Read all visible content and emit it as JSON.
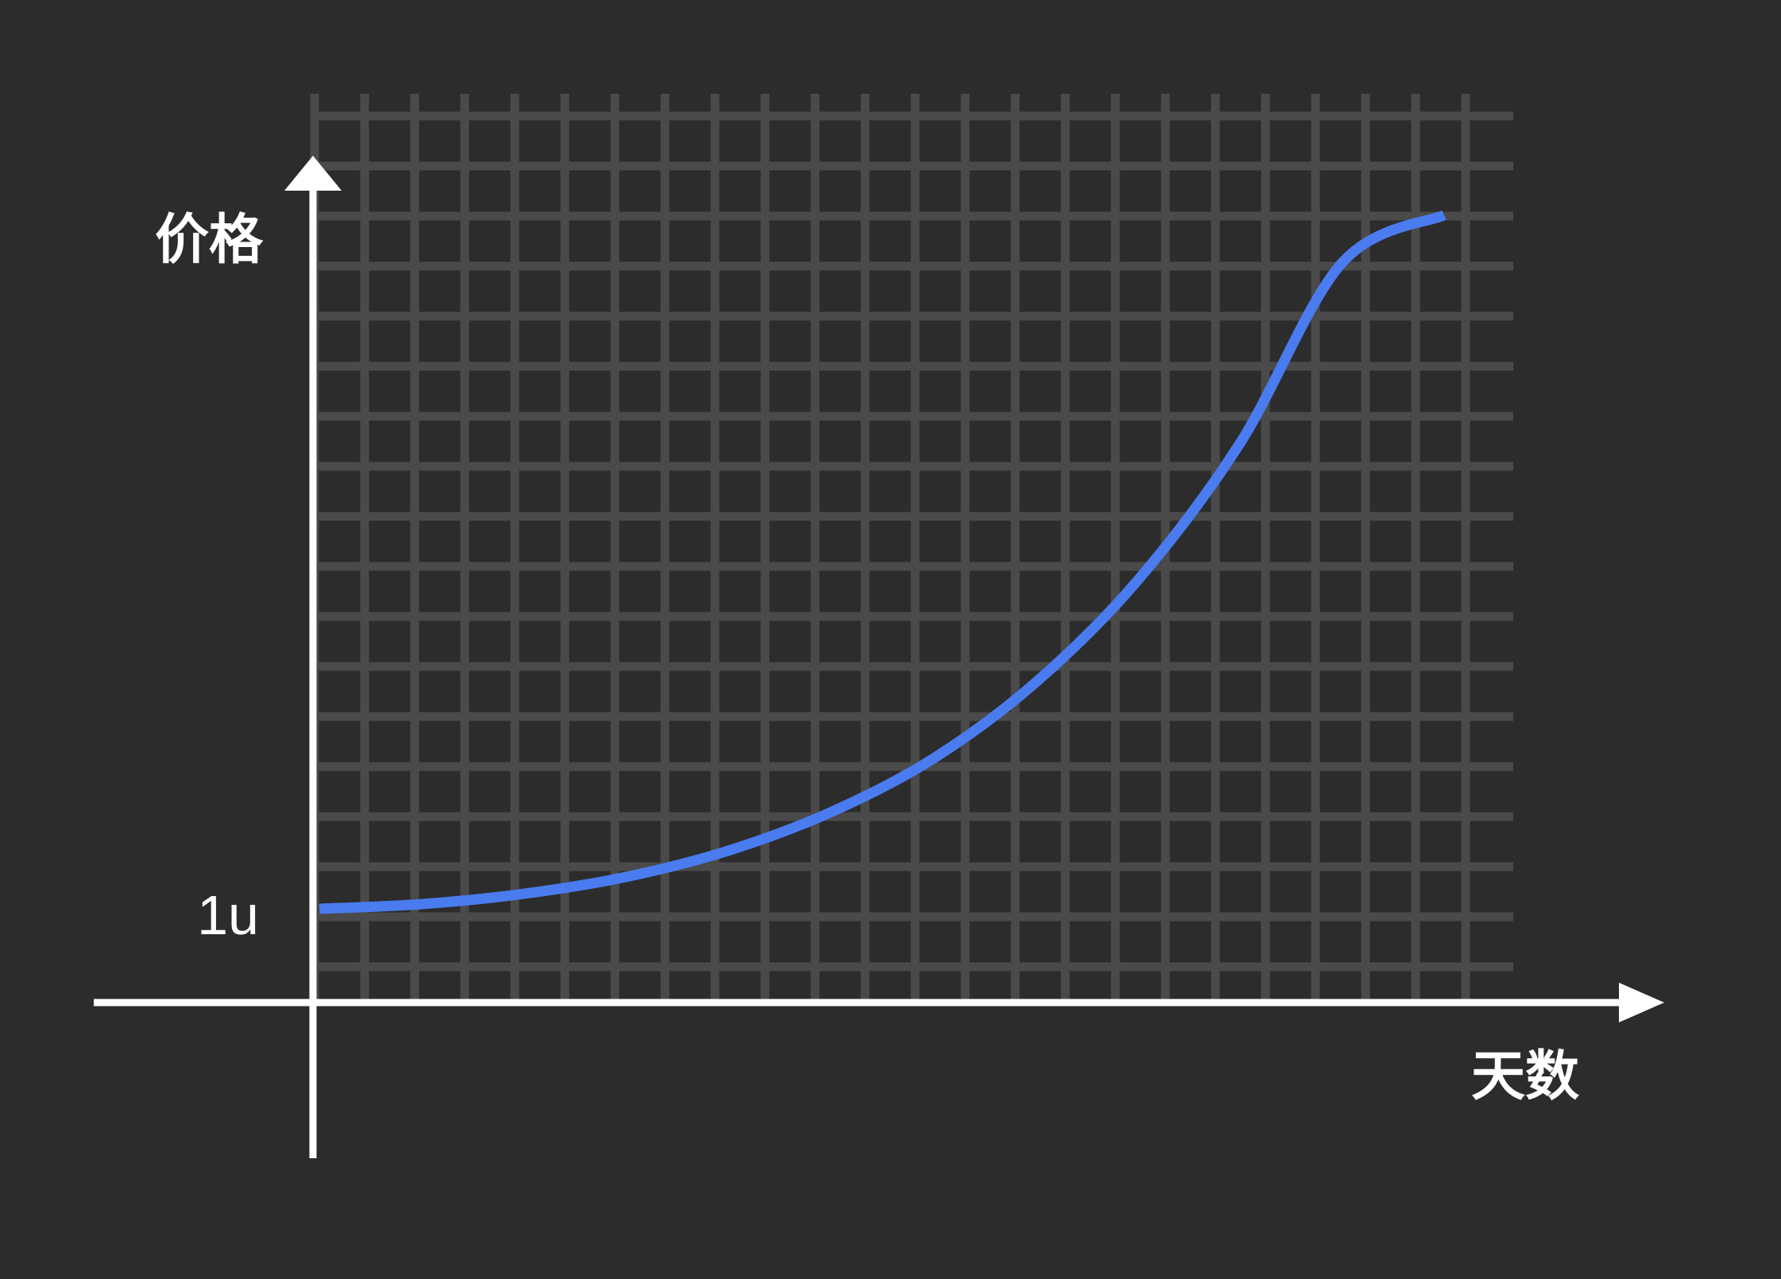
{
  "chart_data": {
    "type": "line",
    "title": "",
    "xlabel": "天数",
    "ylabel": "价格",
    "y_ticks": [
      {
        "value": 1,
        "label": "1u"
      }
    ],
    "ylim": [
      0,
      9
    ],
    "xlim": [
      0,
      11
    ],
    "grid": true,
    "series": [
      {
        "x": [
          0,
          1,
          2,
          3,
          4,
          5,
          6,
          7,
          8,
          9,
          10,
          11
        ],
        "values": [
          1,
          1.05,
          1.16,
          1.34,
          1.62,
          2.03,
          2.6,
          3.41,
          4.5,
          5.96,
          7.89,
          8.4
        ]
      }
    ],
    "colors": {
      "background": "#2c2c2c",
      "grid": "#4a4a4a",
      "axis": "#ffffff",
      "line": "#4a7cf0"
    }
  }
}
